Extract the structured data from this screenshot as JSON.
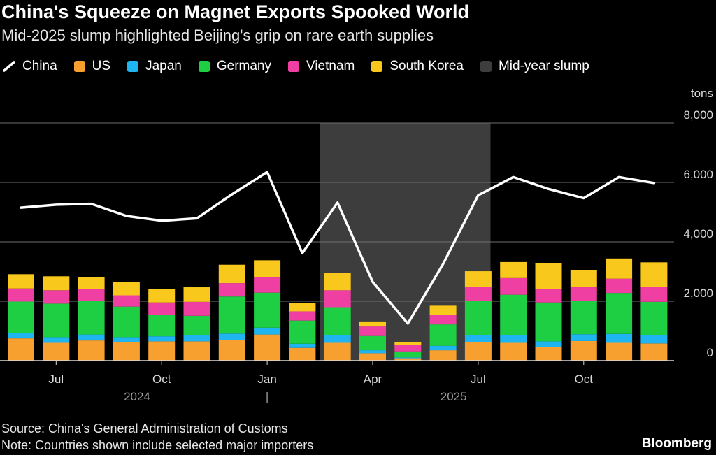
{
  "title": "China's Squeeze on Magnet Exports Spooked World",
  "subtitle": "Mid-2025 slump highlighted Beijing's grip on rare earth supplies",
  "legend": [
    {
      "label": "China",
      "color": "#ffffff",
      "kind": "line"
    },
    {
      "label": "US",
      "color": "#f7a030",
      "kind": "bar"
    },
    {
      "label": "Japan",
      "color": "#1fb5f0",
      "kind": "bar"
    },
    {
      "label": "Germany",
      "color": "#1fcf43",
      "kind": "bar"
    },
    {
      "label": "Vietnam",
      "color": "#f03fa3",
      "kind": "bar"
    },
    {
      "label": "South Korea",
      "color": "#f8c81c",
      "kind": "bar"
    },
    {
      "label": "Mid-year slump",
      "color": "#3d3d3d",
      "kind": "bar"
    }
  ],
  "footer": {
    "source": "Source: China's General Administration of Customs",
    "note": "Note: Countries shown include selected major importers",
    "brand": "Bloomberg"
  },
  "chart_data": {
    "type": "bar",
    "stacked": true,
    "unit_label": "tons",
    "ylim": [
      0,
      8000
    ],
    "yticks": [
      0,
      2000,
      4000,
      6000,
      8000
    ],
    "ytick_labels": [
      "0",
      "2,000",
      "4,000",
      "6,000",
      "8,000"
    ],
    "categories": [
      "2024-06",
      "2024-07",
      "2024-08",
      "2024-09",
      "2024-10",
      "2024-11",
      "2024-12",
      "2025-01",
      "2025-02",
      "2025-03",
      "2025-04",
      "2025-05",
      "2025-06",
      "2025-07",
      "2025-08",
      "2025-09",
      "2025-10",
      "2025-11",
      "2025-12"
    ],
    "x_tick_labels": [
      {
        "label": "Jul",
        "index": 1
      },
      {
        "label": "Oct",
        "index": 4
      },
      {
        "label": "Jan",
        "index": 7
      },
      {
        "label": "Apr",
        "index": 10
      },
      {
        "label": "Jul",
        "index": 13
      },
      {
        "label": "Oct",
        "index": 16
      }
    ],
    "year_labels": [
      {
        "label": "2024",
        "index": 3.3
      },
      {
        "label": "|",
        "index": 7
      },
      {
        "label": "2025",
        "index": 12.3
      }
    ],
    "shaded_region": {
      "label": "Mid-year slump",
      "start_index": 8.5,
      "end_index": 13.35
    },
    "series": [
      {
        "name": "US",
        "color": "#f7a030",
        "values": [
          750,
          600,
          680,
          620,
          650,
          650,
          700,
          880,
          430,
          600,
          250,
          80,
          350,
          620,
          600,
          450,
          660,
          600,
          580
        ]
      },
      {
        "name": "Japan",
        "color": "#1fb5f0",
        "values": [
          190,
          190,
          200,
          170,
          170,
          200,
          210,
          230,
          140,
          250,
          100,
          30,
          150,
          230,
          260,
          200,
          230,
          300,
          280
        ]
      },
      {
        "name": "Germany",
        "color": "#1fcf43",
        "values": [
          1050,
          1130,
          1120,
          1030,
          720,
          660,
          1250,
          1180,
          780,
          950,
          480,
          200,
          720,
          1150,
          1360,
          1310,
          1130,
          1380,
          1120
        ]
      },
      {
        "name": "Vietnam",
        "color": "#f03fa3",
        "values": [
          440,
          450,
          400,
          380,
          420,
          470,
          450,
          520,
          310,
          570,
          320,
          220,
          330,
          480,
          560,
          440,
          450,
          480,
          510
        ]
      },
      {
        "name": "South Korea",
        "color": "#f8c81c",
        "values": [
          480,
          470,
          420,
          450,
          440,
          490,
          620,
          570,
          290,
          580,
          170,
          100,
          300,
          530,
          540,
          880,
          580,
          680,
          820
        ]
      }
    ],
    "line_series": {
      "name": "China",
      "color": "#ffffff",
      "values": [
        5150,
        5250,
        5280,
        4870,
        4710,
        4790,
        5600,
        6350,
        3620,
        5320,
        2650,
        1250,
        3250,
        5570,
        6180,
        5780,
        5470,
        6180,
        5980
      ]
    }
  }
}
